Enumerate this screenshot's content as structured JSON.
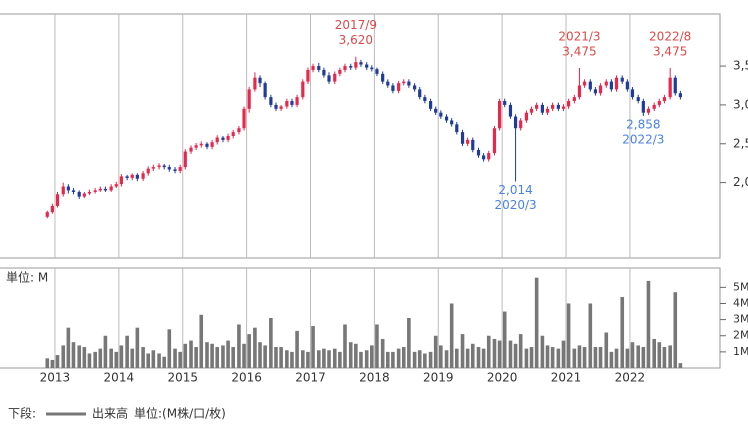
{
  "chart_data": {
    "type": "candlestick",
    "x": [
      2012.88,
      2012.96,
      2013.04,
      2013.13,
      2013.21,
      2013.29,
      2013.38,
      2013.46,
      2013.54,
      2013.63,
      2013.71,
      2013.79,
      2013.88,
      2013.96,
      2014.04,
      2014.13,
      2014.21,
      2014.29,
      2014.38,
      2014.46,
      2014.54,
      2014.63,
      2014.71,
      2014.79,
      2014.88,
      2014.96,
      2015.04,
      2015.13,
      2015.21,
      2015.29,
      2015.38,
      2015.46,
      2015.54,
      2015.63,
      2015.71,
      2015.79,
      2015.88,
      2015.96,
      2016.04,
      2016.13,
      2016.21,
      2016.29,
      2016.38,
      2016.46,
      2016.54,
      2016.63,
      2016.71,
      2016.79,
      2016.88,
      2016.96,
      2017.04,
      2017.13,
      2017.21,
      2017.29,
      2017.38,
      2017.46,
      2017.54,
      2017.63,
      2017.71,
      2017.79,
      2017.88,
      2017.96,
      2018.04,
      2018.13,
      2018.21,
      2018.29,
      2018.38,
      2018.46,
      2018.54,
      2018.63,
      2018.71,
      2018.79,
      2018.88,
      2018.96,
      2019.04,
      2019.13,
      2019.21,
      2019.29,
      2019.38,
      2019.46,
      2019.54,
      2019.63,
      2019.71,
      2019.79,
      2019.88,
      2019.96,
      2020.04,
      2020.13,
      2020.21,
      2020.29,
      2020.38,
      2020.46,
      2020.54,
      2020.63,
      2020.71,
      2020.79,
      2020.88,
      2020.96,
      2021.04,
      2021.13,
      2021.21,
      2021.29,
      2021.38,
      2021.46,
      2021.54,
      2021.63,
      2021.71,
      2021.79,
      2021.88,
      2021.96,
      2022.04,
      2022.13,
      2022.21,
      2022.29,
      2022.38,
      2022.46,
      2022.54,
      2022.63,
      2022.71,
      2022.79
    ],
    "open": [
      1560,
      1620,
      1700,
      1850,
      1950,
      1900,
      1880,
      1820,
      1860,
      1880,
      1900,
      1920,
      1900,
      1950,
      1980,
      2080,
      2060,
      2100,
      2050,
      2120,
      2180,
      2200,
      2220,
      2200,
      2170,
      2150,
      2200,
      2400,
      2450,
      2480,
      2500,
      2460,
      2520,
      2580,
      2550,
      2600,
      2650,
      2700,
      2950,
      3200,
      3350,
      3280,
      3100,
      3000,
      2950,
      2980,
      3050,
      3000,
      3100,
      3300,
      3450,
      3500,
      3450,
      3380,
      3300,
      3400,
      3450,
      3500,
      3480,
      3550,
      3520,
      3480,
      3460,
      3400,
      3300,
      3250,
      3180,
      3280,
      3300,
      3250,
      3200,
      3100,
      3050,
      2950,
      2900,
      2850,
      2800,
      2750,
      2650,
      2500,
      2550,
      2420,
      2350,
      2300,
      2380,
      2700,
      3050,
      3000,
      2850,
      2700,
      2800,
      2900,
      2950,
      3000,
      2900,
      2950,
      3000,
      2950,
      2980,
      3050,
      3100,
      3250,
      3300,
      3200,
      3150,
      3250,
      3300,
      3200,
      3350,
      3300,
      3200,
      3100,
      3050,
      2900,
      2950,
      3000,
      3050,
      3100,
      3350,
      3150
    ],
    "high": [
      1640,
      1730,
      1880,
      2000,
      1980,
      1930,
      1900,
      1880,
      1910,
      1930,
      1950,
      1950,
      1980,
      2010,
      2110,
      2100,
      2120,
      2120,
      2150,
      2210,
      2230,
      2250,
      2240,
      2230,
      2200,
      2230,
      2430,
      2480,
      2510,
      2530,
      2520,
      2550,
      2610,
      2600,
      2630,
      2680,
      2730,
      2980,
      3230,
      3420,
      3380,
      3300,
      3130,
      3030,
      3000,
      3080,
      3080,
      3130,
      3330,
      3480,
      3530,
      3540,
      3480,
      3420,
      3430,
      3480,
      3530,
      3530,
      3620,
      3580,
      3550,
      3510,
      3480,
      3430,
      3330,
      3280,
      3310,
      3330,
      3330,
      3280,
      3230,
      3130,
      3080,
      2980,
      2930,
      2880,
      2830,
      2780,
      2680,
      2580,
      2580,
      2450,
      2380,
      2410,
      2730,
      3080,
      3080,
      3030,
      2880,
      2830,
      2930,
      2980,
      3030,
      3030,
      2980,
      3030,
      3030,
      3010,
      3080,
      3130,
      3475,
      3330,
      3330,
      3230,
      3280,
      3330,
      3330,
      3380,
      3380,
      3330,
      3230,
      3130,
      3080,
      2980,
      3030,
      3080,
      3130,
      3475,
      3380,
      3180
    ],
    "low": [
      1540,
      1600,
      1680,
      1820,
      1860,
      1850,
      1790,
      1800,
      1840,
      1860,
      1880,
      1880,
      1880,
      1930,
      1950,
      2030,
      2030,
      2020,
      2020,
      2090,
      2150,
      2170,
      2170,
      2140,
      2120,
      2120,
      2170,
      2370,
      2420,
      2450,
      2430,
      2430,
      2490,
      2520,
      2520,
      2570,
      2620,
      2670,
      2900,
      3170,
      3230,
      3070,
      2970,
      2920,
      2920,
      2950,
      2970,
      2970,
      3070,
      3270,
      3420,
      3420,
      3350,
      3270,
      3270,
      3370,
      3420,
      3450,
      3450,
      3490,
      3450,
      3430,
      3370,
      3270,
      3220,
      3150,
      3150,
      3250,
      3220,
      3170,
      3070,
      3020,
      2920,
      2870,
      2820,
      2770,
      2720,
      2620,
      2470,
      2470,
      2390,
      2320,
      2270,
      2270,
      2350,
      2670,
      2970,
      2820,
      2014,
      2670,
      2770,
      2870,
      2920,
      2870,
      2870,
      2920,
      2920,
      2920,
      2950,
      3020,
      3070,
      3220,
      3170,
      3120,
      3120,
      3220,
      3170,
      3170,
      3270,
      3170,
      3070,
      3020,
      2858,
      2870,
      2920,
      2970,
      3020,
      3070,
      3120,
      3070
    ],
    "close": [
      1620,
      1700,
      1850,
      1950,
      1900,
      1880,
      1820,
      1860,
      1880,
      1900,
      1920,
      1900,
      1950,
      1980,
      2080,
      2060,
      2100,
      2050,
      2120,
      2180,
      2200,
      2220,
      2200,
      2170,
      2150,
      2200,
      2400,
      2450,
      2480,
      2500,
      2460,
      2520,
      2580,
      2550,
      2600,
      2650,
      2700,
      2950,
      3200,
      3350,
      3280,
      3100,
      3000,
      2950,
      2980,
      3050,
      3000,
      3100,
      3300,
      3450,
      3500,
      3450,
      3380,
      3300,
      3400,
      3450,
      3500,
      3480,
      3550,
      3520,
      3480,
      3460,
      3400,
      3300,
      3250,
      3180,
      3280,
      3300,
      3250,
      3200,
      3100,
      3050,
      2950,
      2900,
      2850,
      2800,
      2750,
      2650,
      2500,
      2550,
      2420,
      2350,
      2300,
      2380,
      2700,
      3050,
      3000,
      2850,
      2700,
      2800,
      2900,
      2950,
      3000,
      2900,
      2950,
      3000,
      2950,
      2980,
      3050,
      3100,
      3250,
      3300,
      3200,
      3150,
      3250,
      3300,
      3200,
      3350,
      3300,
      3200,
      3100,
      3050,
      2900,
      2950,
      3000,
      3050,
      3100,
      3350,
      3150,
      3100
    ],
    "volume": [
      0.6,
      0.5,
      0.8,
      1.4,
      2.5,
      1.6,
      1.4,
      1.3,
      0.9,
      1.0,
      1.2,
      2.0,
      1.2,
      1.0,
      1.4,
      2.0,
      1.2,
      2.5,
      1.3,
      0.9,
      1.1,
      0.9,
      0.7,
      2.4,
      1.2,
      1.0,
      1.5,
      1.7,
      1.3,
      3.3,
      1.6,
      1.5,
      1.3,
      1.4,
      1.7,
      1.3,
      2.7,
      1.5,
      2.1,
      2.5,
      1.6,
      1.4,
      3.1,
      1.3,
      1.3,
      1.1,
      1.0,
      2.3,
      1.1,
      1.0,
      2.6,
      1.1,
      1.2,
      1.1,
      1.2,
      1.0,
      2.7,
      1.6,
      1.5,
      1.0,
      1.1,
      1.4,
      2.7,
      1.8,
      1.0,
      1.0,
      1.2,
      1.3,
      3.1,
      1.0,
      1.1,
      0.9,
      1.0,
      2.0,
      1.4,
      1.1,
      4.0,
      1.2,
      2.1,
      1.2,
      1.5,
      1.3,
      1.2,
      2.0,
      1.8,
      1.7,
      3.5,
      1.7,
      1.5,
      2.1,
      1.2,
      1.3,
      5.6,
      2.0,
      1.4,
      1.3,
      1.2,
      1.7,
      4.0,
      1.2,
      1.4,
      1.3,
      4.0,
      1.3,
      1.3,
      2.2,
      1.0,
      1.2,
      4.4,
      1.2,
      1.6,
      1.4,
      1.3,
      5.4,
      1.8,
      1.6,
      1.3,
      1.4,
      4.7,
      0.3
    ],
    "up_color": "#e8274b",
    "down_color": "#1f3b9b",
    "volume_color": "#777777",
    "xlim": [
      2012.14,
      2023.41
    ],
    "xticks": [
      2013,
      2014,
      2015,
      2016,
      2017,
      2018,
      2019,
      2020,
      2021,
      2022
    ],
    "ylim": [
      1030,
      4170
    ],
    "yticks": [
      {
        "value": 2000,
        "label": "2,000"
      },
      {
        "value": 2500,
        "label": "2,500"
      },
      {
        "value": 3000,
        "label": "3,000"
      },
      {
        "value": 3500,
        "label": "3,500"
      }
    ],
    "volume_ylim": [
      0,
      6.2
    ],
    "volume_yticks": [
      {
        "value": 1,
        "label": "1M"
      },
      {
        "value": 2,
        "label": "2M"
      },
      {
        "value": 3,
        "label": "3M"
      },
      {
        "value": 4,
        "label": "4M"
      },
      {
        "value": 5,
        "label": "5M"
      }
    ],
    "volume_axis_label": "単位: M",
    "annotations": [
      {
        "date": "2017/9",
        "x": 2017.71,
        "value": 3620,
        "value_label": "3,620",
        "kind": "high",
        "color": "#e04848"
      },
      {
        "date": "2021/3",
        "x": 2021.21,
        "value": 3475,
        "value_label": "3,475",
        "kind": "high",
        "color": "#e04848"
      },
      {
        "date": "2022/8",
        "x": 2022.63,
        "value": 3475,
        "value_label": "3,475",
        "kind": "high",
        "color": "#e04848"
      },
      {
        "date": "2020/3",
        "x": 2020.21,
        "value": 2014,
        "value_label": "2,014",
        "kind": "low",
        "color": "#4a82e6"
      },
      {
        "date": "2022/3",
        "x": 2022.21,
        "value": 2858,
        "value_label": "2,858",
        "kind": "low",
        "color": "#4a82e6"
      }
    ],
    "legend": {
      "prefix": "下段:",
      "label": "出来高",
      "unit": "単位:(M株/口/枚)"
    }
  }
}
